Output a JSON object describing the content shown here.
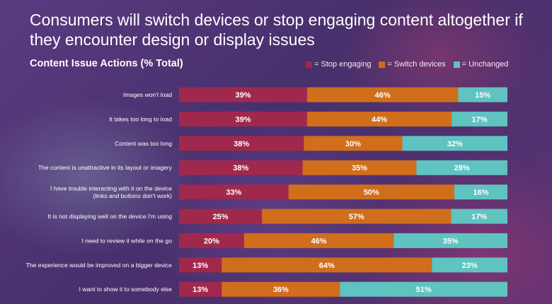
{
  "title": "Consumers will switch devices or stop engaging content altogether if they encounter design or display issues",
  "subtitle": "Content Issue Actions (% Total)",
  "colors": {
    "stop": "#a1284d",
    "switch": "#d06e1c",
    "unchanged": "#5fc3c0",
    "label": "#ffffff"
  },
  "chart_data": {
    "type": "bar",
    "orientation": "horizontal",
    "stacked": true,
    "title": "Content Issue Actions (% Total)",
    "legend_position": "top-right",
    "value_suffix": "%",
    "categories": [
      "Images won't load",
      "It takes too long to load",
      "Content was too long",
      "The content is unattractive in its layout or imagery",
      "I have trouble interacting with it on the device\n(links and buttons don't work)",
      "It is not displaying well on the device I'm using",
      "I need to review it while on the go",
      "The experience would be improved on a bigger device",
      "I want to show it to somebody else"
    ],
    "series": [
      {
        "name": "Stop engaging",
        "legend_label": "= Stop engaging",
        "values": [
          39,
          39,
          38,
          38,
          33,
          25,
          20,
          13,
          13
        ]
      },
      {
        "name": "Switch devices",
        "legend_label": "= Switch devices",
        "values": [
          46,
          44,
          30,
          35,
          50,
          57,
          46,
          64,
          36
        ]
      },
      {
        "name": "Unchanged",
        "legend_label": "= Unchanged",
        "values": [
          15,
          17,
          32,
          28,
          16,
          17,
          35,
          23,
          51
        ]
      }
    ]
  }
}
